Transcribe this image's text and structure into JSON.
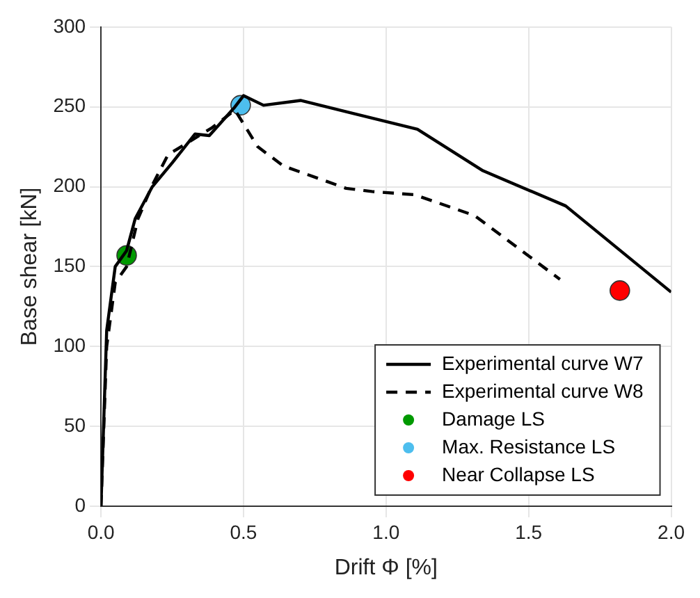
{
  "chart_data": {
    "type": "line",
    "xlabel": "Drift Φ [%]",
    "ylabel": "Base shear [kN]",
    "xlim": [
      0,
      2
    ],
    "xticks": [
      {
        "value": 0,
        "label": "0.0"
      },
      0.5,
      {
        "value": 1,
        "label": "1.0"
      },
      1.5,
      {
        "value": 2,
        "label": "2.0"
      }
    ],
    "ylim": [
      0,
      300
    ],
    "yticks": [
      0,
      50,
      100,
      150,
      200,
      250,
      300
    ],
    "grid": true,
    "legend": "bottom right",
    "series": [
      {
        "name": "Experimental curve W7",
        "color": "#000000",
        "line_style": "solid",
        "marker": "none",
        "x": [
          0,
          0.02,
          0.05,
          0.09,
          0.12,
          0.18,
          0.25,
          0.33,
          0.38,
          0.47,
          0.5,
          0.57,
          0.7,
          1.11,
          1.34,
          1.63,
          2.0
        ],
        "values": [
          0,
          110,
          150,
          160,
          180,
          200,
          215,
          233,
          232,
          250,
          257,
          251,
          254,
          236,
          210,
          188,
          134
        ]
      },
      {
        "name": "Experimental curve W8",
        "color": "#000000",
        "line_style": "dashed",
        "marker": "none",
        "x": [
          0,
          0.02,
          0.05,
          0.09,
          0.13,
          0.18,
          0.235,
          0.39,
          0.47,
          0.55,
          0.64,
          0.86,
          0.95,
          1.1,
          1.31,
          1.61
        ],
        "values": [
          0,
          100,
          140,
          150,
          180,
          201,
          220,
          237,
          248,
          225,
          213,
          199,
          197,
          195,
          182,
          142
        ]
      },
      {
        "name": "Damage LS",
        "type": "scatter",
        "color": "#009900",
        "marker": "circle",
        "x": [
          0.09
        ],
        "values": [
          157
        ]
      },
      {
        "name": "Max. Resistance LS",
        "type": "scatter",
        "color": "#4dbeee",
        "marker": "circle",
        "x": [
          0.49
        ],
        "values": [
          251
        ]
      },
      {
        "name": "Near Collapse LS",
        "type": "scatter",
        "color": "#ff0000",
        "marker": "circle",
        "x": [
          1.82
        ],
        "values": [
          135
        ]
      }
    ]
  }
}
